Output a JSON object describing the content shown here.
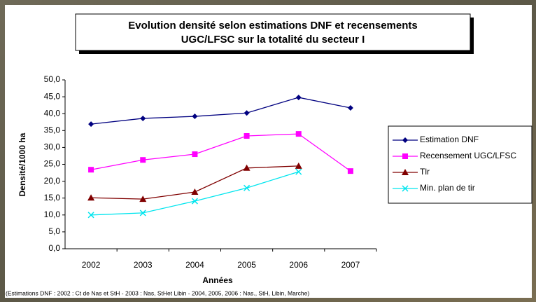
{
  "chart_data": {
    "type": "line",
    "title": [
      "Evolution densité selon estimations DNF et recensements",
      "UGC/LFSC sur la totalité du secteur I"
    ],
    "x_label": "Années",
    "y_label": "Densité/1000 ha",
    "note": "(Estimations DNF : 2002 : Ct de Nas et StH - 2003 : Nas, StHet Libin - 2004, 2005, 2006 : Nas., StH, Libin, Marche)",
    "categories": [
      "2002",
      "2003",
      "2004",
      "2005",
      "2006",
      "2007"
    ],
    "series": [
      {
        "name": "Estimation DNF",
        "color": "#000080",
        "marker": "diamond",
        "values": [
          36.9,
          38.6,
          39.2,
          40.2,
          44.8,
          41.7
        ]
      },
      {
        "name": "Recensement UGC/LFSC",
        "color": "#ff00ff",
        "marker": "square",
        "values": [
          23.4,
          26.3,
          28.0,
          33.4,
          34.0,
          23.0
        ]
      },
      {
        "name": "Tlr",
        "color": "#800000",
        "marker": "triangle",
        "values": [
          15.1,
          14.7,
          16.8,
          23.9,
          24.5,
          null
        ]
      },
      {
        "name": "Min. plan de tir",
        "color": "#00e5ee",
        "marker": "x",
        "values": [
          10.0,
          10.6,
          14.1,
          18.0,
          22.8,
          null
        ]
      }
    ],
    "ylim": [
      0,
      50
    ],
    "yticks": [
      {
        "value": 0,
        "label": "0,0"
      },
      {
        "value": 5,
        "label": "5,0"
      },
      {
        "value": 10,
        "label": "10,0"
      },
      {
        "value": 15,
        "label": "15,0"
      },
      {
        "value": 20,
        "label": "20,0"
      },
      {
        "value": 25,
        "label": "25,0"
      },
      {
        "value": 30,
        "label": "30,0"
      },
      {
        "value": 35,
        "label": "35,0"
      },
      {
        "value": 40,
        "label": "40,0"
      },
      {
        "value": 45,
        "label": "45,0"
      },
      {
        "value": 50,
        "label": "50,0"
      }
    ],
    "grid": false,
    "legend": "right"
  }
}
